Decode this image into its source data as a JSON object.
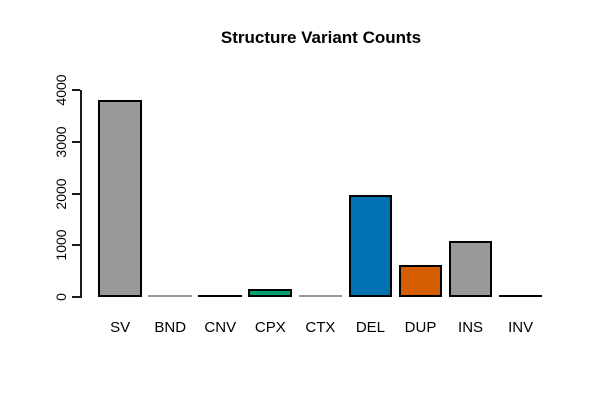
{
  "chart_data": {
    "type": "bar",
    "title": "Structure Variant Counts",
    "categories": [
      "SV",
      "BND",
      "CNV",
      "CPX",
      "CTX",
      "DEL",
      "DUP",
      "INS",
      "INV"
    ],
    "values": [
      3800,
      10,
      25,
      150,
      10,
      1970,
      620,
      1080,
      25
    ],
    "bar_colors": [
      "#999999",
      "#999999",
      "#000000",
      "#009E73",
      "#999999",
      "#0072B2",
      "#D55E00",
      "#999999",
      "#000000"
    ],
    "bar_border_color": "#000000",
    "xlabel": "",
    "ylabel": "",
    "ylim": [
      0,
      4000
    ],
    "yticks": [
      0,
      1000,
      2000,
      3000,
      4000
    ],
    "ytick_labels": [
      "0",
      "1000",
      "2000",
      "3000",
      "4000"
    ],
    "grid": false,
    "legend": "none",
    "axis_color": "#1a1a1a",
    "background_color": "#ffffff",
    "title_color": "#000000"
  }
}
